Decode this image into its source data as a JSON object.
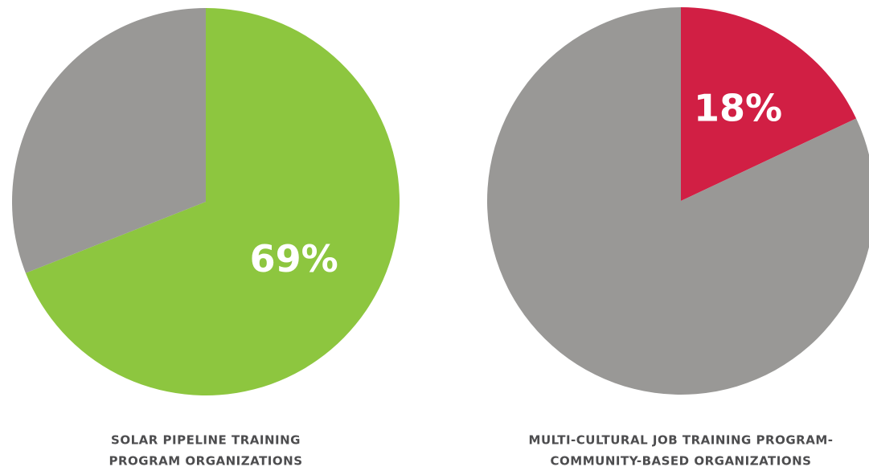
{
  "chart_data": [
    {
      "type": "pie",
      "title": [
        "SOLAR PIPELINE TRAINING",
        "PROGRAM ORGANIZATIONS"
      ],
      "values": [
        69,
        31
      ],
      "value_labels": [
        "69%",
        null
      ],
      "colors": [
        "#8dc63f",
        "#999896"
      ]
    },
    {
      "type": "pie",
      "title": [
        "MULTI-CULTURAL JOB TRAINING PROGRAM-",
        "COMMUNITY-BASED ORGANIZATIONS"
      ],
      "values": [
        18,
        82
      ],
      "value_labels": [
        "18%",
        null
      ],
      "colors": [
        "#d11f44",
        "#999896"
      ]
    }
  ]
}
